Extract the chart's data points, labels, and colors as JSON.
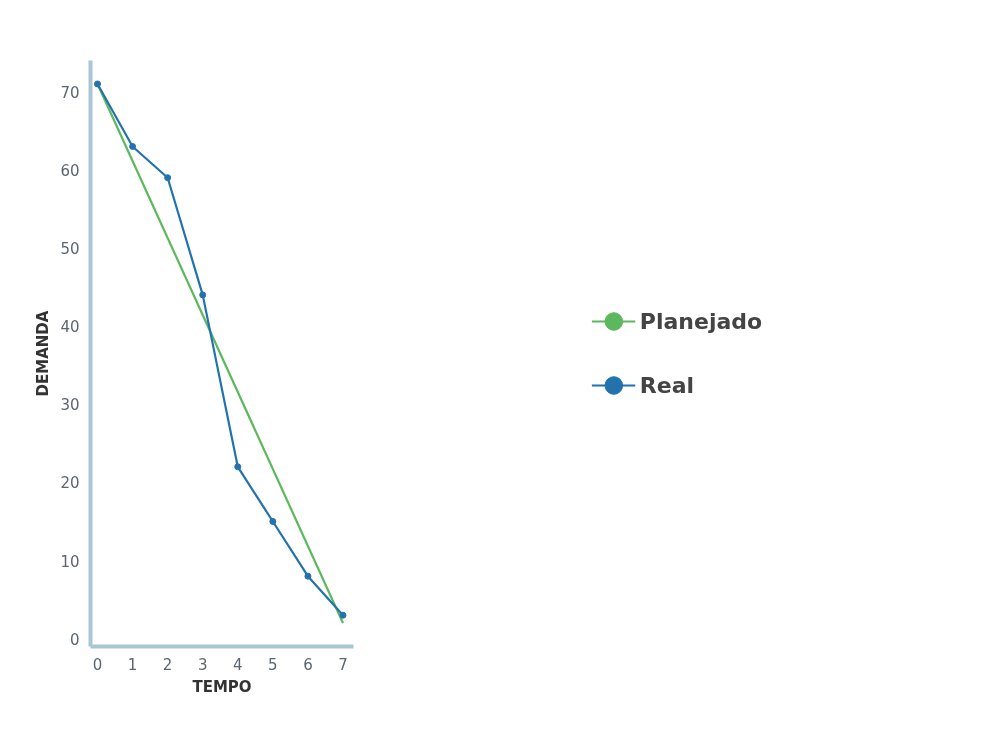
{
  "chart_data": {
    "type": "line",
    "xlabel": "TEMPO",
    "ylabel": "DEMANDA",
    "xlim": [
      -0.2,
      7.3
    ],
    "ylim": [
      -1,
      74
    ],
    "xticks": [
      0,
      1,
      2,
      3,
      4,
      5,
      6,
      7
    ],
    "yticks": [
      0,
      10,
      20,
      30,
      40,
      50,
      60,
      70
    ],
    "grid": false,
    "legend": "right",
    "series": [
      {
        "name": "Planejado",
        "color": "#5cb85c",
        "x": [
          0,
          7
        ],
        "values": [
          71,
          2
        ],
        "marker": "none"
      },
      {
        "name": "Real",
        "color": "#2273ad",
        "x": [
          0,
          1,
          2,
          3,
          4,
          5,
          6,
          7
        ],
        "values": [
          71,
          63,
          59,
          44,
          22,
          15,
          8,
          3
        ],
        "marker": "circle"
      }
    ]
  }
}
